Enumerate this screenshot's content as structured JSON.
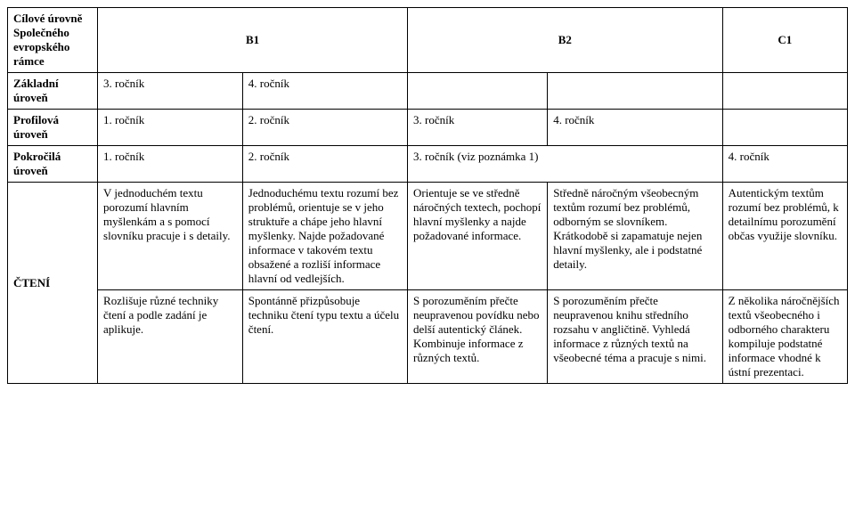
{
  "header": {
    "leftTitle": "Cílové úrovně Společného evropského rámce",
    "b1": "B1",
    "b2": "B2",
    "c1": "C1"
  },
  "rows": {
    "zakladni": {
      "label": "Základní úroveň",
      "c1": "3. ročník",
      "c2": "4. ročník"
    },
    "profilova": {
      "label": "Profilová úroveň",
      "c1": "1. ročník",
      "c2": "2. ročník",
      "c3": "3. ročník",
      "c4": "4. ročník"
    },
    "pokrocila": {
      "label": "Pokročilá úroveň",
      "c1": "1. ročník",
      "c2": "2. ročník",
      "c3": "3. ročník (viz poznámka 1)",
      "c4": "4. ročník"
    }
  },
  "cteni": {
    "label": "ČTENÍ",
    "r1": {
      "c1": "V jednoduchém textu porozumí hlavním myšlenkám a s pomocí slovníku pracuje i s detaily.",
      "c2": "Jednoduchému textu rozumí bez problémů, orientuje se v jeho struktuře a chápe jeho hlavní myšlenky. Najde požadované informace v takovém textu obsažené a rozliší informace hlavní od vedlejších.",
      "c3": "Orientuje se ve středně náročných textech, pochopí hlavní myšlenky a najde požadované informace.",
      "c4": "Středně náročným všeobecným textům rozumí bez problémů, odborným se slovníkem. Krátkodobě si zapamatuje nejen hlavní myšlenky, ale i podstatné detaily.",
      "c6": "Autentickým textům rozumí bez problémů, k detailnímu porozumění občas využije slovníku."
    },
    "r2": {
      "c1": "Rozlišuje různé techniky čtení a podle zadání je aplikuje.",
      "c2": "Spontánně přizpůsobuje techniku čtení typu textu a účelu čtení.",
      "c3": "S porozuměním přečte neupravenou povídku nebo delší autentický článek. Kombinuje informace z různých textů.",
      "c4": "S porozuměním přečte neupravenou knihu středního rozsahu v angličtině. Vyhledá informace z různých textů na všeobecné téma a pracuje s nimi.",
      "c6": "Z několika náročnějších textů všeobecného i odborného charakteru kompiluje podstatné informace vhodné k ústní prezentaci."
    }
  }
}
